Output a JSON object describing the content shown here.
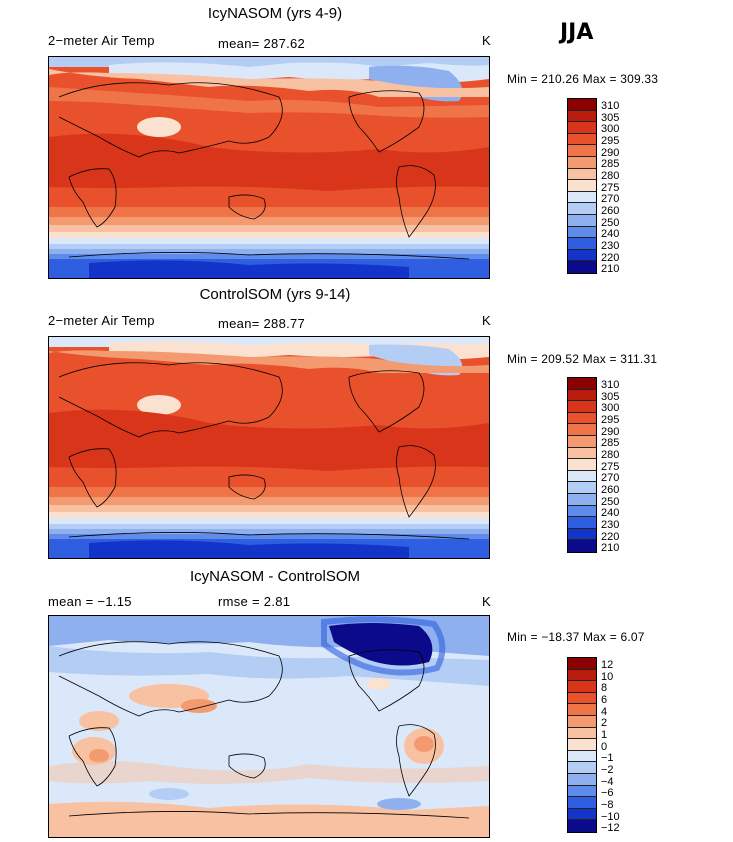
{
  "season": "JJA",
  "panels": [
    {
      "title": "IcyNASOM (yrs 4-9)",
      "left": "2−meter Air Temp",
      "mid": "mean=  287.62",
      "unit": "K",
      "minmax": "Min = 210.26 Max = 309.33",
      "colorbar": [
        "310",
        "305",
        "300",
        "295",
        "290",
        "285",
        "280",
        "275",
        "270",
        "260",
        "250",
        "240",
        "230",
        "220",
        "210"
      ]
    },
    {
      "title": "ControlSOM (yrs 9-14)",
      "left": "2−meter Air Temp",
      "mid": "mean=  288.77",
      "unit": "K",
      "minmax": "Min = 209.52 Max = 311.31",
      "colorbar": [
        "310",
        "305",
        "300",
        "295",
        "290",
        "285",
        "280",
        "275",
        "270",
        "260",
        "250",
        "240",
        "230",
        "220",
        "210"
      ]
    },
    {
      "title": "IcyNASOM - ControlSOM",
      "left": "mean =   −1.15",
      "mid": "rmse =    2.81",
      "unit": "K",
      "minmax": "Min = −18.37 Max =   6.07",
      "colorbar": [
        "12",
        "10",
        "8",
        "6",
        "4",
        "2",
        "1",
        "0",
        "−1",
        "−2",
        "−4",
        "−6",
        "−8",
        "−10",
        "−12"
      ]
    }
  ],
  "colors": {
    "temp_scale": [
      "#8b0000",
      "#b81d0e",
      "#d9351a",
      "#e8512b",
      "#ef7447",
      "#f49a70",
      "#f8c1a2",
      "#fbe1d0",
      "#dbe8fa",
      "#b4cdf5",
      "#8eb0ee",
      "#5f8ceb",
      "#2f5fe0",
      "#1234c9",
      "#0a0a8a"
    ],
    "diff_scale": [
      "#8b0000",
      "#b81d0e",
      "#d9351a",
      "#e8512b",
      "#ef7447",
      "#f49a70",
      "#f8c1a2",
      "#fbe1d0",
      "#dbe8fa",
      "#b4cdf5",
      "#8eb0ee",
      "#5f8ceb",
      "#2f5fe0",
      "#1234c9",
      "#0a0a8a"
    ]
  },
  "chart_data": [
    {
      "type": "heatmap",
      "title": "IcyNASOM (yrs 4-9)",
      "variable": "2-meter Air Temp",
      "units": "K",
      "mean": 287.62,
      "min": 210.26,
      "max": 309.33,
      "levels": [
        210,
        220,
        230,
        240,
        250,
        260,
        270,
        275,
        280,
        285,
        290,
        295,
        300,
        305,
        310
      ]
    },
    {
      "type": "heatmap",
      "title": "ControlSOM (yrs 9-14)",
      "variable": "2-meter Air Temp",
      "units": "K",
      "mean": 288.77,
      "min": 209.52,
      "max": 311.31,
      "levels": [
        210,
        220,
        230,
        240,
        250,
        260,
        270,
        275,
        280,
        285,
        290,
        295,
        300,
        305,
        310
      ]
    },
    {
      "type": "heatmap",
      "title": "IcyNASOM - ControlSOM",
      "units": "K",
      "mean": -1.15,
      "rmse": 2.81,
      "min": -18.37,
      "max": 6.07,
      "levels": [
        -12,
        -10,
        -8,
        -6,
        -4,
        -2,
        -1,
        0,
        1,
        2,
        4,
        6,
        8,
        10,
        12
      ]
    }
  ]
}
